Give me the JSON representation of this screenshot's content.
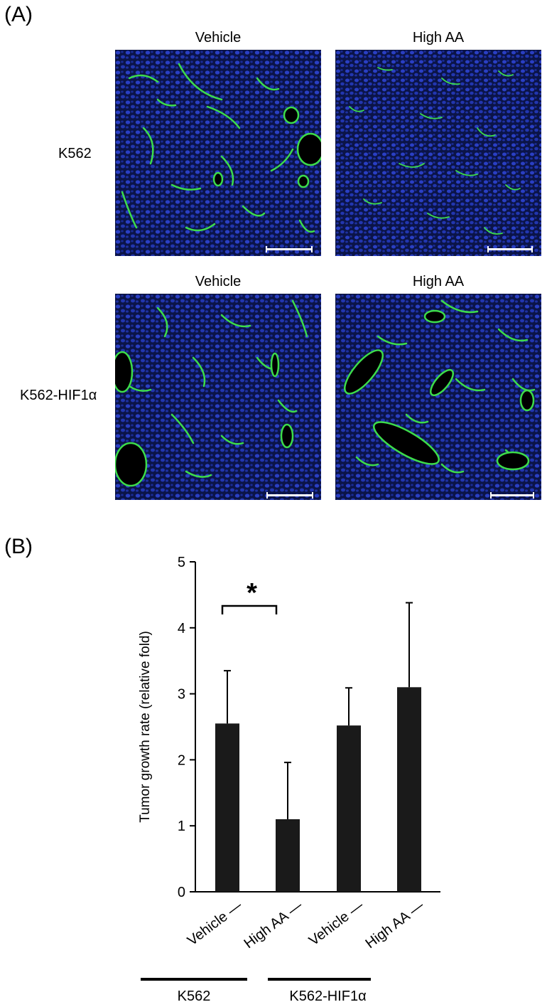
{
  "panel_a": {
    "label": "(A)",
    "columns": [
      "Vehicle",
      "High AA"
    ],
    "rows": [
      "K562",
      "K562-HIF1α"
    ]
  },
  "panel_b": {
    "label": "(B)"
  },
  "chart_data": {
    "type": "bar",
    "categories": [
      "Vehicle —",
      "High AA —",
      "Vehicle —",
      "High AA —"
    ],
    "values": [
      2.55,
      1.1,
      2.52,
      3.1
    ],
    "error_upper": [
      3.35,
      1.96,
      3.09,
      4.38
    ],
    "ylabel": "Tumor growth rate (relative fold)",
    "xlabel": "",
    "ylim": [
      0,
      5
    ],
    "yticks": [
      0,
      1,
      2,
      3,
      4,
      5
    ],
    "bar_color": "#1a1a1a",
    "grid": false,
    "significance": {
      "between": [
        0,
        1
      ],
      "label": "*"
    },
    "groups": [
      {
        "label": "K562",
        "categories": [
          0,
          1
        ]
      },
      {
        "label": "K562-HIF1α",
        "categories": [
          2,
          3
        ]
      }
    ]
  }
}
